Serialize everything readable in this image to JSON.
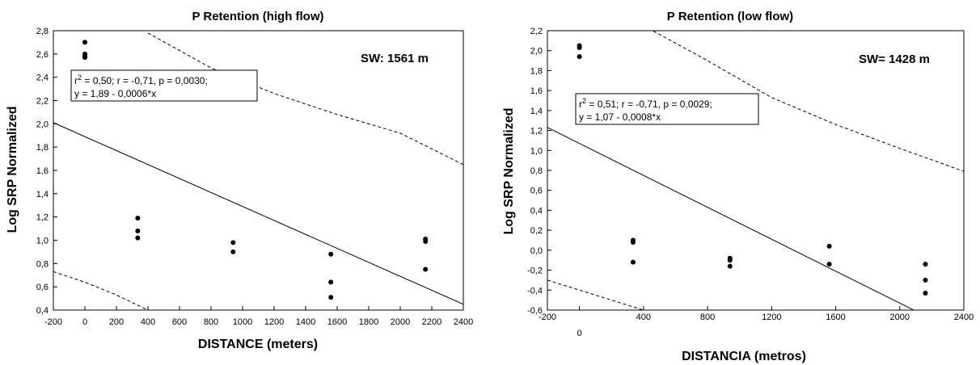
{
  "chart_data": [
    {
      "type": "scatter",
      "title": "P Retention (high flow)",
      "xlabel": "DISTANCE (meters)",
      "ylabel": "Log SRP Normalized",
      "xlim": [
        -200,
        2400
      ],
      "ylim": [
        0.4,
        2.8
      ],
      "x_tick_values": [
        -200,
        0,
        200,
        400,
        600,
        800,
        1000,
        1200,
        1400,
        1600,
        1800,
        2000,
        2200,
        2400
      ],
      "x_tick_labels": [
        "-200",
        "0",
        "200",
        "400",
        "600",
        "800",
        "1000",
        "1200",
        "1400",
        "1600",
        "1800",
        "2000",
        "2200",
        "2400"
      ],
      "y_tick_values": [
        0.4,
        0.6,
        0.8,
        1.0,
        1.2,
        1.4,
        1.6,
        1.8,
        2.0,
        2.2,
        2.4,
        2.6,
        2.8
      ],
      "y_tick_labels": [
        "0,4",
        "0,6",
        "0,8",
        "1,0",
        "1,2",
        "1,4",
        "1,6",
        "1,8",
        "2,0",
        "2,2",
        "2,4",
        "2,6",
        "2,8"
      ],
      "points": {
        "x": [
          0,
          0,
          0,
          0,
          335,
          335,
          335,
          940,
          940,
          1560,
          1560,
          1560,
          2160,
          2160,
          2160
        ],
        "y": [
          2.7,
          2.6,
          2.58,
          2.57,
          1.19,
          1.08,
          1.02,
          0.98,
          0.9,
          0.88,
          0.64,
          0.51,
          1.01,
          0.99,
          0.75
        ]
      },
      "fit_line": {
        "intercept": 1.89,
        "slope": -0.0006
      },
      "confidence_upper": {
        "x": [
          400,
          800,
          1200,
          1600,
          2000,
          2400
        ],
        "y": [
          2.78,
          2.48,
          2.26,
          2.08,
          1.92,
          1.65
        ]
      },
      "confidence_lower": {
        "x": [
          -200,
          0,
          200,
          400
        ],
        "y": [
          0.73,
          0.64,
          0.53,
          0.4
        ]
      },
      "stats_text": {
        "r2_base": "r",
        "r2_sup": "2",
        "r2_rest": " = 0,50;  r = -0,71, p = 0,0030;",
        "line2": "y = 1,89 - 0,0006*x"
      },
      "sw_label": "SW: 1561 m"
    },
    {
      "type": "scatter",
      "title": "P Retention (low flow)",
      "xlabel": "DISTANCIA (metros)",
      "ylabel": "Log SRP Normalized",
      "xlim": [
        -200,
        2400
      ],
      "ylim": [
        -0.6,
        2.2
      ],
      "x_tick_values": [
        -200,
        0,
        400,
        800,
        1200,
        1600,
        2000,
        2400
      ],
      "x_tick_labels": [
        "-200",
        "0",
        "400",
        "800",
        "1200",
        "1600",
        "2000",
        "2400"
      ],
      "y_tick_values": [
        -0.6,
        -0.4,
        -0.2,
        0.0,
        0.2,
        0.4,
        0.6,
        0.8,
        1.0,
        1.2,
        1.4,
        1.6,
        1.8,
        2.0,
        2.2
      ],
      "y_tick_labels": [
        "-0,6",
        "-0,4",
        "-0,2",
        "0,0",
        "0,2",
        "0,4",
        "0,6",
        "0,8",
        "1,0",
        "1,2",
        "1,4",
        "1,6",
        "1,8",
        "2,0",
        "2,2"
      ],
      "points": {
        "x": [
          0,
          0,
          0,
          335,
          335,
          335,
          940,
          940,
          940,
          1560,
          1560,
          2160,
          2160,
          2160
        ],
        "y": [
          2.05,
          2.03,
          1.94,
          0.1,
          0.08,
          -0.12,
          -0.08,
          -0.1,
          -0.16,
          0.04,
          -0.14,
          -0.14,
          -0.3,
          -0.43
        ]
      },
      "fit_line": {
        "intercept": 1.07,
        "slope": -0.0008
      },
      "confidence_upper": {
        "x": [
          400,
          800,
          1200,
          1600,
          2000,
          2400
        ],
        "y": [
          2.25,
          1.9,
          1.53,
          1.26,
          1.02,
          0.79
        ]
      },
      "confidence_lower": {
        "x": [
          -200,
          0,
          200,
          400
        ],
        "y": [
          -0.3,
          -0.4,
          -0.5,
          -0.6
        ]
      },
      "stats_text": {
        "r2_base": "r",
        "r2_sup": "2",
        "r2_rest": " = 0,51;  r = -0,71, p = 0,0029;",
        "line2": "y = 1,07 - 0,0008*x"
      },
      "sw_label": "SW= 1428 m"
    }
  ]
}
